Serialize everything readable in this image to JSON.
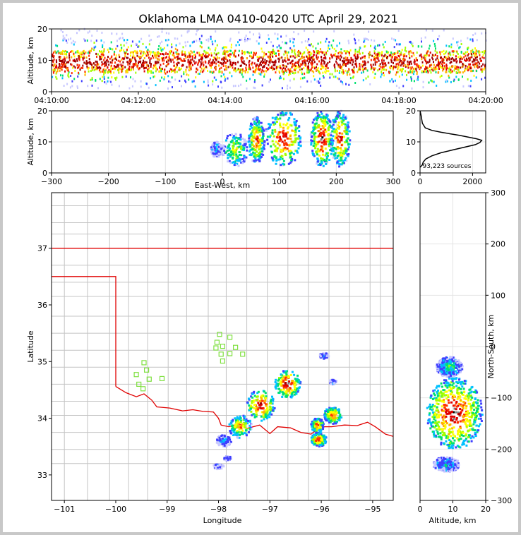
{
  "title": "Oklahoma LMA 0410-0420 UTC April 29, 2021",
  "chart_data": [
    {
      "id": "alt_time",
      "type": "heatmap",
      "xlabel": "",
      "ylabel": "Altitude, km",
      "xticks": [
        "04:10:00",
        "04:12:00",
        "04:14:00",
        "04:16:00",
        "04:18:00",
        "04:20:00"
      ],
      "xlim_minutes": [
        0,
        10
      ],
      "ylim": [
        0,
        20
      ],
      "yticks": [
        0,
        10,
        20
      ],
      "core_altitude_km": [
        6,
        13
      ]
    },
    {
      "id": "ew_alt",
      "type": "heatmap",
      "xlabel": "East-West, km",
      "ylabel": "Altitude, km",
      "xlim": [
        -300,
        300
      ],
      "xticks": [
        -300,
        -200,
        -100,
        0,
        100,
        200,
        300
      ],
      "ylim": [
        0,
        20
      ],
      "yticks": [
        0,
        10,
        20
      ],
      "clusters": [
        {
          "x": [
            -20,
            0
          ],
          "y": [
            5,
            10
          ],
          "intensity": 0.3
        },
        {
          "x": [
            0,
            45
          ],
          "y": [
            2,
            13
          ],
          "intensity": 0.6
        },
        {
          "x": [
            45,
            75
          ],
          "y": [
            3,
            18
          ],
          "intensity": 0.85
        },
        {
          "x": [
            75,
            140
          ],
          "y": [
            2,
            20
          ],
          "intensity": 0.95
        },
        {
          "x": [
            155,
            195
          ],
          "y": [
            2,
            20
          ],
          "intensity": 1.0
        },
        {
          "x": [
            190,
            225
          ],
          "y": [
            2,
            20
          ],
          "intensity": 0.9
        }
      ]
    },
    {
      "id": "histogram",
      "type": "line",
      "annotation": "93,223 sources",
      "xlim": [
        0,
        2500
      ],
      "xticks": [
        0,
        2000
      ],
      "ylim": [
        0,
        20
      ],
      "yticks": [
        0,
        10,
        20
      ],
      "points": [
        [
          0,
          20
        ],
        [
          40,
          18.5
        ],
        [
          90,
          16
        ],
        [
          200,
          14.5
        ],
        [
          450,
          13.7
        ],
        [
          800,
          13.1
        ],
        [
          1150,
          12.6
        ],
        [
          1500,
          12.1
        ],
        [
          1850,
          11.5
        ],
        [
          2150,
          11.0
        ],
        [
          2350,
          10.5
        ],
        [
          2280,
          9.8
        ],
        [
          2100,
          9.1
        ],
        [
          1700,
          8.3
        ],
        [
          1250,
          7.4
        ],
        [
          800,
          6.5
        ],
        [
          450,
          5.5
        ],
        [
          220,
          4.5
        ],
        [
          120,
          3.5
        ],
        [
          80,
          2.5
        ],
        [
          20,
          2.0
        ],
        [
          0,
          1.8
        ]
      ]
    },
    {
      "id": "map",
      "type": "heatmap",
      "xlabel": "Longitude",
      "ylabel": "Latitude",
      "xlim": [
        -101.25,
        -94.6
      ],
      "ylim": [
        32.55,
        37.98
      ],
      "xticks": [
        -101,
        -100,
        -99,
        -98,
        -97,
        -96,
        -95
      ],
      "yticks": [
        33,
        34,
        35,
        36,
        37
      ],
      "clusters": [
        {
          "lon": [
            -96.9,
            -96.4
          ],
          "lat": [
            34.35,
            34.85
          ],
          "intensity": 1.0
        },
        {
          "lon": [
            -97.45,
            -96.9
          ],
          "lat": [
            33.95,
            34.5
          ],
          "intensity": 0.95
        },
        {
          "lon": [
            -97.8,
            -97.35
          ],
          "lat": [
            33.65,
            34.05
          ],
          "intensity": 0.7
        },
        {
          "lon": [
            -98.05,
            -97.75
          ],
          "lat": [
            33.5,
            33.7
          ],
          "intensity": 0.3
        },
        {
          "lon": [
            -96.2,
            -95.9
          ],
          "lat": [
            33.5,
            33.75
          ],
          "intensity": 0.9
        },
        {
          "lon": [
            -96.2,
            -95.95
          ],
          "lat": [
            33.75,
            34.0
          ],
          "intensity": 0.85
        },
        {
          "lon": [
            -95.95,
            -95.6
          ],
          "lat": [
            33.9,
            34.2
          ],
          "intensity": 0.85
        },
        {
          "lon": [
            -98.1,
            -97.9
          ],
          "lat": [
            33.1,
            33.2
          ],
          "intensity": 0.2
        },
        {
          "lon": [
            -97.9,
            -97.75
          ],
          "lat": [
            33.25,
            33.33
          ],
          "intensity": 0.2
        },
        {
          "lon": [
            -96.05,
            -95.85
          ],
          "lat": [
            35.05,
            35.15
          ],
          "intensity": 0.25
        },
        {
          "lon": [
            -95.85,
            -95.7
          ],
          "lat": [
            34.6,
            34.68
          ],
          "intensity": 0.25
        }
      ],
      "stations": [
        [
          -97.98,
          35.48
        ],
        [
          -97.78,
          35.43
        ],
        [
          -98.03,
          35.34
        ],
        [
          -97.92,
          35.27
        ],
        [
          -98.05,
          35.24
        ],
        [
          -97.67,
          35.25
        ],
        [
          -97.95,
          35.13
        ],
        [
          -97.78,
          35.14
        ],
        [
          -97.53,
          35.13
        ],
        [
          -97.92,
          35.01
        ],
        [
          -99.45,
          34.98
        ],
        [
          -99.4,
          34.85
        ],
        [
          -99.6,
          34.77
        ],
        [
          -99.35,
          34.69
        ],
        [
          -99.1,
          34.7
        ],
        [
          -99.55,
          34.6
        ],
        [
          -99.47,
          34.52
        ]
      ],
      "county_grid": {
        "lon_lines": [
          -101,
          -100.55,
          -100.12,
          -99.75,
          -99.38,
          -98.98,
          -98.62,
          -98.2,
          -97.85,
          -97.45,
          -97.05,
          -96.65,
          -96.25,
          -95.85,
          -95.45,
          -95.05,
          -94.85
        ],
        "lat_lines": [
          33.2,
          33.45,
          33.75,
          34.05,
          34.3,
          34.6,
          34.9,
          35.2,
          35.5,
          35.8,
          36.15,
          36.4,
          36.7,
          37.25,
          37.45,
          37.75
        ]
      },
      "boundary_segments": [
        [
          [
            -101.25,
            37.0
          ],
          [
            -94.6,
            37.0
          ]
        ],
        [
          [
            -101.25,
            36.5
          ],
          [
            -100.0,
            36.5
          ],
          [
            -100.0,
            34.56
          ]
        ],
        [
          [
            -100.0,
            34.56
          ],
          [
            -99.8,
            34.45
          ],
          [
            -99.6,
            34.38
          ],
          [
            -99.45,
            34.43
          ],
          [
            -99.3,
            34.32
          ],
          [
            -99.2,
            34.2
          ],
          [
            -98.95,
            34.18
          ],
          [
            -98.7,
            34.13
          ],
          [
            -98.5,
            34.15
          ],
          [
            -98.3,
            34.12
          ],
          [
            -98.1,
            34.11
          ],
          [
            -98.0,
            34.0
          ],
          [
            -97.95,
            33.88
          ],
          [
            -97.8,
            33.85
          ],
          [
            -97.6,
            33.9
          ],
          [
            -97.45,
            33.82
          ],
          [
            -97.2,
            33.88
          ],
          [
            -97.0,
            33.73
          ],
          [
            -96.85,
            33.85
          ],
          [
            -96.6,
            33.83
          ],
          [
            -96.4,
            33.75
          ],
          [
            -96.2,
            33.72
          ],
          [
            -96.0,
            33.85
          ],
          [
            -95.8,
            33.85
          ],
          [
            -95.55,
            33.88
          ],
          [
            -95.3,
            33.87
          ],
          [
            -95.1,
            33.93
          ],
          [
            -94.95,
            33.85
          ],
          [
            -94.75,
            33.72
          ],
          [
            -94.6,
            33.68
          ]
        ]
      ]
    },
    {
      "id": "ns_alt",
      "type": "heatmap",
      "xlabel": "Altitude, km",
      "ylabel": "North-South, km",
      "xlim": [
        0,
        20
      ],
      "xticks": [
        0,
        10,
        20
      ],
      "ylim": [
        -300,
        300
      ],
      "yticks": [
        -300,
        -200,
        -100,
        0,
        100,
        200,
        300
      ],
      "clusters": [
        {
          "alt": [
            2,
            19
          ],
          "ns": [
            -200,
            -60
          ],
          "intensity": 1.0
        },
        {
          "alt": [
            5,
            13
          ],
          "ns": [
            -60,
            -20
          ],
          "intensity": 0.4
        },
        {
          "alt": [
            4,
            12
          ],
          "ns": [
            -245,
            -215
          ],
          "intensity": 0.3
        }
      ]
    }
  ]
}
